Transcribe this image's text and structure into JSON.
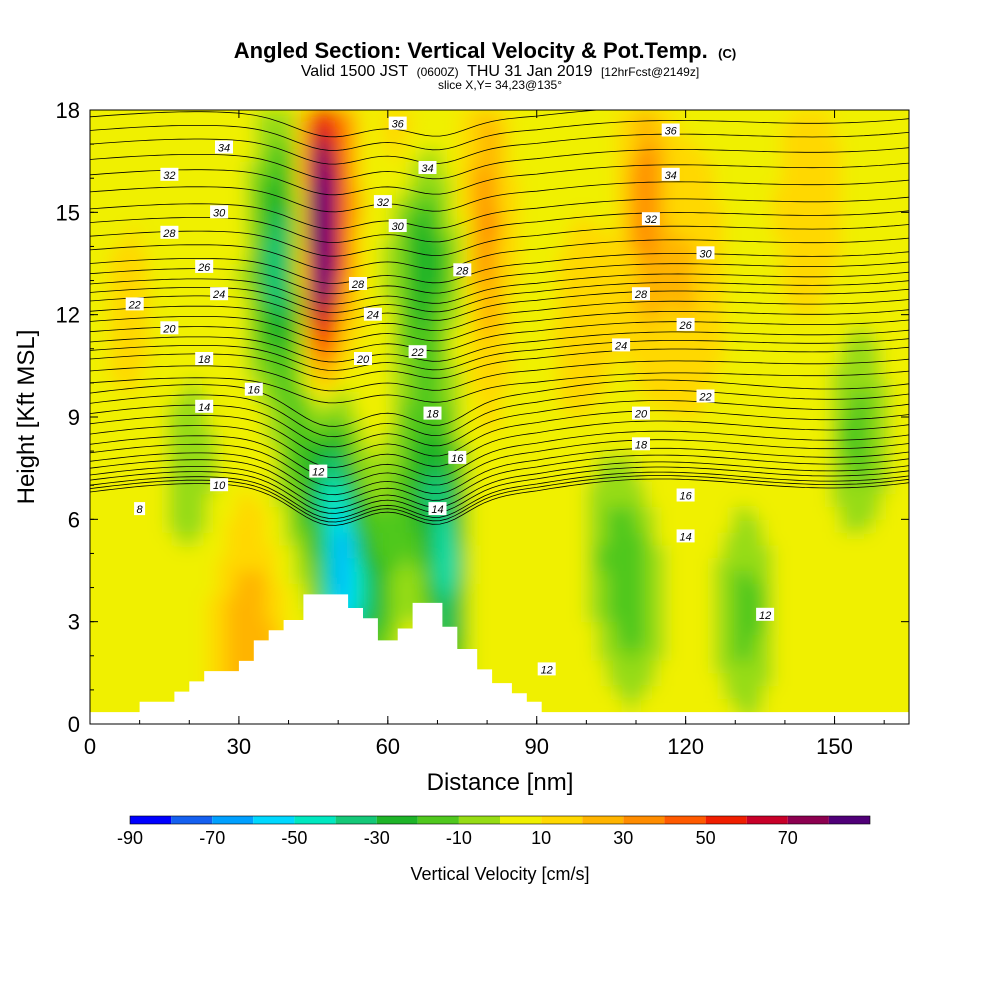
{
  "title": {
    "main": "Angled Section: Vertical Velocity & Pot.Temp.",
    "units": "(C)",
    "valid_prefix": "Valid 1500 JST",
    "valid_utc": "(0600Z)",
    "valid_date": "THU 31 Jan 2019",
    "forecast": "[12hrFcst@2149z]",
    "slice": "slice X,Y= 34,23@135°"
  },
  "chart_data": {
    "type": "heatmap",
    "xlabel": "Distance [nm]",
    "ylabel": "Height [Kft MSL]",
    "xlim": [
      0,
      165
    ],
    "ylim": [
      0,
      18
    ],
    "xticks": [
      0,
      30,
      60,
      90,
      120,
      150
    ],
    "yticks": [
      0,
      3,
      6,
      9,
      12,
      15,
      18
    ],
    "colorbar": {
      "title": "Vertical Velocity [cm/s]",
      "levels": [
        -90,
        -80,
        -70,
        -60,
        -50,
        -40,
        -30,
        -20,
        -10,
        0,
        10,
        20,
        30,
        40,
        50,
        60,
        70,
        80
      ],
      "tick_labels": [
        -90,
        -70,
        -50,
        -30,
        -10,
        10,
        30,
        50,
        70
      ],
      "colors": [
        "#0000ff",
        "#1460f0",
        "#00a0ff",
        "#00d8ff",
        "#00e8c0",
        "#14c878",
        "#1eb428",
        "#50c81e",
        "#96dc14",
        "#f0f000",
        "#ffd800",
        "#ffb400",
        "#ff8c00",
        "#ff5a00",
        "#f01e00",
        "#c80028",
        "#8c0050",
        "#500078"
      ]
    },
    "terrain": [
      [
        0,
        0.35
      ],
      [
        10,
        0.35
      ],
      [
        10,
        0.65
      ],
      [
        17,
        0.65
      ],
      [
        17,
        0.95
      ],
      [
        20,
        0.95
      ],
      [
        20,
        1.25
      ],
      [
        23,
        1.25
      ],
      [
        23,
        1.55
      ],
      [
        30,
        1.55
      ],
      [
        30,
        1.85
      ],
      [
        33,
        1.85
      ],
      [
        33,
        2.45
      ],
      [
        36,
        2.45
      ],
      [
        36,
        2.75
      ],
      [
        39,
        2.75
      ],
      [
        39,
        3.05
      ],
      [
        43,
        3.05
      ],
      [
        43,
        3.8
      ],
      [
        52,
        3.8
      ],
      [
        52,
        3.4
      ],
      [
        55,
        3.4
      ],
      [
        55,
        3.1
      ],
      [
        58,
        3.1
      ],
      [
        58,
        2.45
      ],
      [
        62,
        2.45
      ],
      [
        62,
        2.8
      ],
      [
        65,
        2.8
      ],
      [
        65,
        3.55
      ],
      [
        71,
        3.55
      ],
      [
        71,
        2.85
      ],
      [
        74,
        2.85
      ],
      [
        74,
        2.2
      ],
      [
        78,
        2.2
      ],
      [
        78,
        1.6
      ],
      [
        81,
        1.6
      ],
      [
        81,
        1.2
      ],
      [
        85,
        1.2
      ],
      [
        85,
        0.9
      ],
      [
        88,
        0.9
      ],
      [
        88,
        0.65
      ],
      [
        91,
        0.65
      ],
      [
        91,
        0.35
      ],
      [
        165,
        0.35
      ]
    ],
    "wind_features": [
      {
        "x": 46,
        "y": 15.2,
        "value": 75
      },
      {
        "x": 47,
        "y": 13.5,
        "value": 55
      },
      {
        "x": 52,
        "y": 16.5,
        "value": 45
      },
      {
        "x": 60,
        "y": 17.5,
        "value": 25
      },
      {
        "x": 80,
        "y": 14.5,
        "value": 35
      },
      {
        "x": 112,
        "y": 15.5,
        "value": 35
      },
      {
        "x": 120,
        "y": 13.0,
        "value": 22
      },
      {
        "x": 100,
        "y": 11.5,
        "value": 15
      },
      {
        "x": 145,
        "y": 15.0,
        "value": 15
      },
      {
        "x": 38,
        "y": 12.5,
        "value": -25
      },
      {
        "x": 39,
        "y": 15.5,
        "value": -15
      },
      {
        "x": 55,
        "y": 17.0,
        "value": -15
      },
      {
        "x": 67,
        "y": 13.5,
        "value": -28
      },
      {
        "x": 67,
        "y": 7.0,
        "value": -25
      },
      {
        "x": 72,
        "y": 4.0,
        "value": -35
      },
      {
        "x": 45,
        "y": 7.5,
        "value": -25
      },
      {
        "x": 50,
        "y": 4.5,
        "value": -40
      },
      {
        "x": 55,
        "y": 3.8,
        "value": -30
      },
      {
        "x": 110,
        "y": 3.5,
        "value": -12
      },
      {
        "x": 132,
        "y": 3.2,
        "value": -15
      },
      {
        "x": 155,
        "y": 8.5,
        "value": -15
      },
      {
        "x": 32,
        "y": 2.4,
        "value": 30
      },
      {
        "x": 20,
        "y": 7.5,
        "value": -8
      },
      {
        "x": 105,
        "y": 5.5,
        "value": -8
      },
      {
        "x": 145,
        "y": 2.5,
        "value": 8
      },
      {
        "x": 8,
        "y": 12.0,
        "value": 12
      }
    ],
    "theta_profile": [
      [
        0,
        6.3
      ],
      [
        2,
        6.4
      ],
      [
        4,
        6.6
      ],
      [
        6,
        6.8
      ],
      [
        8,
        7.0
      ],
      [
        10,
        7.3
      ],
      [
        12,
        7.7
      ],
      [
        14,
        8.2
      ],
      [
        16,
        8.8
      ],
      [
        18,
        9.4
      ],
      [
        20,
        10.0
      ],
      [
        22,
        10.7
      ],
      [
        24,
        11.2
      ],
      [
        26,
        11.8
      ],
      [
        28,
        12.4
      ],
      [
        30,
        12.9
      ],
      [
        32,
        13.5
      ],
      [
        34,
        14.3
      ],
      [
        36,
        15.1
      ],
      [
        38,
        16.1
      ],
      [
        40,
        17.0
      ],
      [
        42,
        17.8
      ]
    ],
    "contour_labels": [
      {
        "text": "8",
        "x": 10,
        "y": 6.3
      },
      {
        "text": "10",
        "x": 26,
        "y": 7.0
      },
      {
        "text": "12",
        "x": 46,
        "y": 7.4
      },
      {
        "text": "14",
        "x": 23,
        "y": 9.3
      },
      {
        "text": "16",
        "x": 33,
        "y": 9.8
      },
      {
        "text": "18",
        "x": 23,
        "y": 10.7
      },
      {
        "text": "20",
        "x": 16,
        "y": 11.6
      },
      {
        "text": "22",
        "x": 9,
        "y": 12.3
      },
      {
        "text": "24",
        "x": 26,
        "y": 12.6
      },
      {
        "text": "26",
        "x": 23,
        "y": 13.4
      },
      {
        "text": "28",
        "x": 16,
        "y": 14.4
      },
      {
        "text": "30",
        "x": 26,
        "y": 15.0
      },
      {
        "text": "32",
        "x": 16,
        "y": 16.1
      },
      {
        "text": "34",
        "x": 27,
        "y": 16.9
      },
      {
        "text": "36",
        "x": 62,
        "y": 17.6
      },
      {
        "text": "34",
        "x": 68,
        "y": 16.3
      },
      {
        "text": "32",
        "x": 59,
        "y": 15.3
      },
      {
        "text": "30",
        "x": 62,
        "y": 14.6
      },
      {
        "text": "28",
        "x": 54,
        "y": 12.9
      },
      {
        "text": "24",
        "x": 57,
        "y": 12.0
      },
      {
        "text": "20",
        "x": 55,
        "y": 10.7
      },
      {
        "text": "22",
        "x": 66,
        "y": 10.9
      },
      {
        "text": "18",
        "x": 69,
        "y": 9.1
      },
      {
        "text": "16",
        "x": 74,
        "y": 7.8
      },
      {
        "text": "14",
        "x": 70,
        "y": 6.3
      },
      {
        "text": "28",
        "x": 75,
        "y": 13.3
      },
      {
        "text": "36",
        "x": 117,
        "y": 17.4
      },
      {
        "text": "34",
        "x": 117,
        "y": 16.1
      },
      {
        "text": "32",
        "x": 113,
        "y": 14.8
      },
      {
        "text": "30",
        "x": 124,
        "y": 13.8
      },
      {
        "text": "28",
        "x": 111,
        "y": 12.6
      },
      {
        "text": "26",
        "x": 120,
        "y": 11.7
      },
      {
        "text": "24",
        "x": 107,
        "y": 11.1
      },
      {
        "text": "22",
        "x": 124,
        "y": 9.6
      },
      {
        "text": "20",
        "x": 111,
        "y": 9.1
      },
      {
        "text": "18",
        "x": 111,
        "y": 8.2
      },
      {
        "text": "16",
        "x": 120,
        "y": 6.7
      },
      {
        "text": "14",
        "x": 120,
        "y": 5.5
      },
      {
        "text": "12",
        "x": 136,
        "y": 3.2
      },
      {
        "text": "12",
        "x": 92,
        "y": 1.6
      }
    ]
  }
}
